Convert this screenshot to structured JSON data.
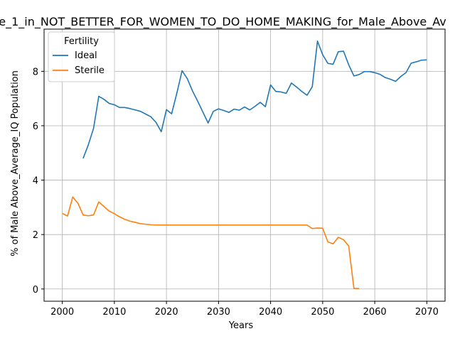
{
  "chart_data": {
    "type": "line",
    "title": "e_1_in_NOT_BETTER_FOR_WOMEN_TO_DO_HOME_MAKING_for_Male_Above_Av",
    "xlabel": "Years",
    "ylabel": "% of Male Above_Average_IQ Population",
    "xlim": [
      1996.5,
      2073.5
    ],
    "ylim": [
      -0.45,
      9.55
    ],
    "xticks": [
      2000,
      2010,
      2020,
      2030,
      2040,
      2050,
      2060,
      2070
    ],
    "yticks": [
      0,
      2,
      4,
      6,
      8
    ],
    "grid": true,
    "legend": {
      "title": "Fertility",
      "placement": "top-left"
    },
    "series": [
      {
        "name": "Ideal",
        "color": "#1f77b4",
        "x": [
          2004,
          2005,
          2006,
          2007,
          2008,
          2009,
          2010,
          2011,
          2012,
          2013,
          2014,
          2015,
          2016,
          2017,
          2018,
          2019,
          2020,
          2021,
          2022,
          2023,
          2024,
          2025,
          2026,
          2027,
          2028,
          2029,
          2030,
          2031,
          2032,
          2033,
          2034,
          2035,
          2036,
          2037,
          2038,
          2039,
          2040,
          2041,
          2042,
          2043,
          2044,
          2045,
          2046,
          2047,
          2048,
          2049,
          2050,
          2051,
          2052,
          2053,
          2054,
          2055,
          2056,
          2057,
          2058,
          2059,
          2060,
          2061,
          2062,
          2063,
          2064,
          2065,
          2066,
          2067,
          2068,
          2069,
          2070
        ],
        "y": [
          4.8,
          5.3,
          5.9,
          7.08,
          6.97,
          6.82,
          6.77,
          6.67,
          6.67,
          6.63,
          6.58,
          6.53,
          6.43,
          6.33,
          6.12,
          5.78,
          6.59,
          6.44,
          7.2,
          8.02,
          7.73,
          7.28,
          6.9,
          6.5,
          6.1,
          6.53,
          6.62,
          6.56,
          6.49,
          6.61,
          6.57,
          6.69,
          6.58,
          6.71,
          6.86,
          6.7,
          7.5,
          7.26,
          7.24,
          7.19,
          7.57,
          7.42,
          7.26,
          7.12,
          7.43,
          9.11,
          8.61,
          8.29,
          8.26,
          8.72,
          8.74,
          8.24,
          7.83,
          7.88,
          7.99,
          7.99,
          7.95,
          7.89,
          7.77,
          7.71,
          7.63,
          7.81,
          7.95,
          8.3,
          8.35,
          8.41,
          8.42
        ]
      },
      {
        "name": "Sterile",
        "color": "#ff7f0e",
        "x": [
          2000,
          2001,
          2002,
          2003,
          2004,
          2005,
          2006,
          2007,
          2008,
          2009,
          2010,
          2011,
          2012,
          2013,
          2014,
          2015,
          2016,
          2017,
          2018,
          2019,
          2020,
          2021,
          2022,
          2023,
          2024,
          2025,
          2026,
          2027,
          2028,
          2029,
          2030,
          2031,
          2032,
          2033,
          2034,
          2035,
          2036,
          2037,
          2038,
          2039,
          2040,
          2041,
          2042,
          2043,
          2044,
          2045,
          2046,
          2047,
          2048,
          2049,
          2050,
          2051,
          2052,
          2053,
          2054,
          2055,
          2056,
          2057
        ],
        "y": [
          2.78,
          2.68,
          3.38,
          3.15,
          2.72,
          2.69,
          2.72,
          3.2,
          3.03,
          2.86,
          2.77,
          2.65,
          2.56,
          2.49,
          2.45,
          2.4,
          2.38,
          2.36,
          2.35,
          2.35,
          2.35,
          2.35,
          2.35,
          2.35,
          2.35,
          2.35,
          2.35,
          2.35,
          2.35,
          2.35,
          2.35,
          2.35,
          2.35,
          2.35,
          2.35,
          2.35,
          2.35,
          2.35,
          2.35,
          2.35,
          2.35,
          2.35,
          2.35,
          2.35,
          2.35,
          2.35,
          2.35,
          2.35,
          2.22,
          2.24,
          2.23,
          1.73,
          1.66,
          1.9,
          1.81,
          1.58,
          0.02,
          0.02
        ]
      }
    ]
  }
}
